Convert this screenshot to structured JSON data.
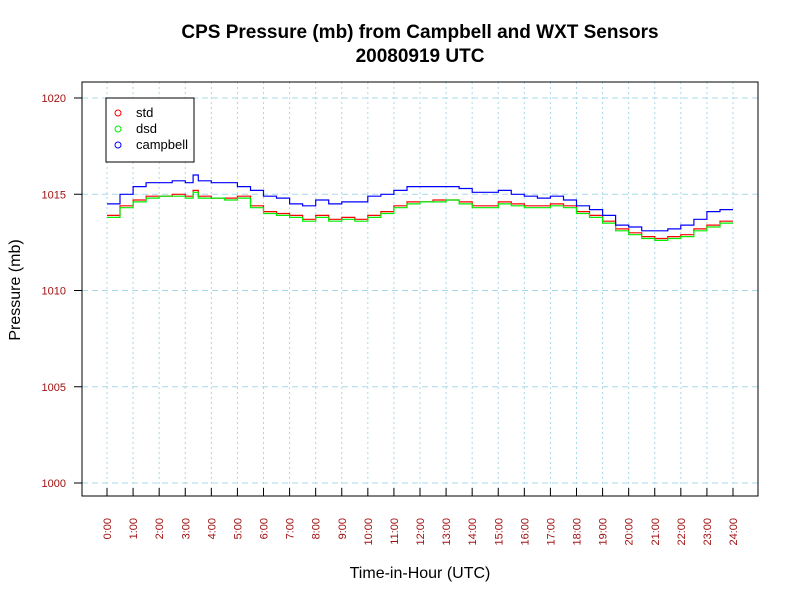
{
  "chart_data": {
    "type": "line",
    "title": "CPS Pressure (mb) from Campbell and WXT Sensors",
    "subtitle": "20080919  UTC",
    "xlabel": "Time-in-Hour (UTC)",
    "ylabel": "Pressure (mb)",
    "xlim": [
      0,
      24
    ],
    "ylim": [
      1000,
      1020
    ],
    "x_ticks": [
      "0:00",
      "1:00",
      "2:00",
      "3:00",
      "4:00",
      "5:00",
      "6:00",
      "7:00",
      "8:00",
      "9:00",
      "10:00",
      "11:00",
      "12:00",
      "13:00",
      "14:00",
      "15:00",
      "16:00",
      "17:00",
      "18:00",
      "19:00",
      "20:00",
      "21:00",
      "22:00",
      "23:00",
      "24:00"
    ],
    "y_ticks": [
      "1000",
      "1005",
      "1010",
      "1015",
      "1020"
    ],
    "grid": true,
    "legend_position": "top-left",
    "x": [
      0,
      0.5,
      1,
      1.5,
      2,
      2.5,
      3,
      3.3,
      3.5,
      4,
      4.5,
      5,
      5.5,
      6,
      6.5,
      7,
      7.5,
      8,
      8.5,
      9,
      9.5,
      10,
      10.5,
      11,
      11.5,
      12,
      12.5,
      13,
      13.5,
      14,
      14.5,
      15,
      15.5,
      16,
      16.5,
      17,
      17.5,
      18,
      18.5,
      19,
      19.5,
      20,
      20.5,
      21,
      21.5,
      22,
      22.5,
      23,
      23.5,
      24
    ],
    "series": [
      {
        "name": "std",
        "color": "#ff0000",
        "values": [
          1013.9,
          1014.4,
          1014.7,
          1014.9,
          1014.9,
          1015.0,
          1014.9,
          1015.2,
          1014.9,
          1014.8,
          1014.8,
          1014.9,
          1014.4,
          1014.1,
          1014.0,
          1013.9,
          1013.7,
          1013.9,
          1013.7,
          1013.8,
          1013.7,
          1013.9,
          1014.1,
          1014.4,
          1014.6,
          1014.6,
          1014.7,
          1014.7,
          1014.6,
          1014.4,
          1014.4,
          1014.6,
          1014.5,
          1014.4,
          1014.4,
          1014.5,
          1014.4,
          1014.1,
          1013.9,
          1013.6,
          1013.2,
          1013.0,
          1012.8,
          1012.7,
          1012.8,
          1012.9,
          1013.2,
          1013.4,
          1013.6,
          1013.6
        ]
      },
      {
        "name": "dsd",
        "color": "#00ee00",
        "values": [
          1013.8,
          1014.3,
          1014.6,
          1014.8,
          1014.9,
          1014.9,
          1014.8,
          1015.1,
          1014.8,
          1014.8,
          1014.7,
          1014.8,
          1014.3,
          1014.0,
          1013.9,
          1013.8,
          1013.6,
          1013.8,
          1013.6,
          1013.7,
          1013.6,
          1013.8,
          1014.0,
          1014.3,
          1014.5,
          1014.6,
          1014.6,
          1014.7,
          1014.5,
          1014.3,
          1014.3,
          1014.5,
          1014.4,
          1014.3,
          1014.3,
          1014.4,
          1014.3,
          1014.0,
          1013.8,
          1013.5,
          1013.1,
          1012.9,
          1012.7,
          1012.6,
          1012.7,
          1012.8,
          1013.1,
          1013.3,
          1013.5,
          1013.5
        ]
      },
      {
        "name": "campbell",
        "color": "#0000ff",
        "values": [
          1014.5,
          1015.0,
          1015.4,
          1015.6,
          1015.6,
          1015.7,
          1015.6,
          1016.0,
          1015.7,
          1015.6,
          1015.6,
          1015.4,
          1015.2,
          1014.9,
          1014.8,
          1014.5,
          1014.4,
          1014.7,
          1014.5,
          1014.6,
          1014.6,
          1014.9,
          1015.0,
          1015.2,
          1015.4,
          1015.4,
          1015.4,
          1015.4,
          1015.3,
          1015.1,
          1015.1,
          1015.2,
          1015.0,
          1014.9,
          1014.8,
          1014.9,
          1014.7,
          1014.4,
          1014.2,
          1013.9,
          1013.4,
          1013.3,
          1013.1,
          1013.1,
          1013.2,
          1013.4,
          1013.7,
          1014.1,
          1014.2,
          1014.2
        ]
      }
    ]
  }
}
